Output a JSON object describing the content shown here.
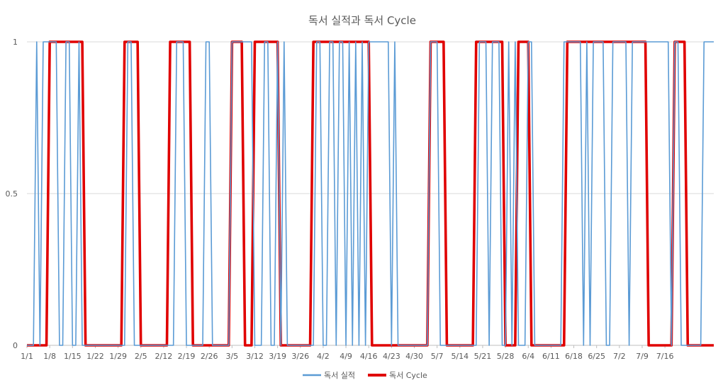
{
  "chart_data": {
    "type": "line",
    "title": "독서 실적과 독서  Cycle",
    "xlabel": "",
    "ylabel": "",
    "ylim": [
      0,
      1
    ],
    "yticks": [
      "0",
      "0.5",
      "1"
    ],
    "grid": true,
    "legend_position": "bottom",
    "x_tick_labels": [
      "1/1",
      "1/8",
      "1/15",
      "1/22",
      "1/29",
      "2/5",
      "2/12",
      "2/19",
      "2/26",
      "3/5",
      "3/12",
      "3/19",
      "3/26",
      "4/2",
      "4/9",
      "4/16",
      "4/23",
      "4/30",
      "5/7",
      "5/14",
      "5/21",
      "5/28",
      "6/4",
      "6/11",
      "6/18",
      "6/25",
      "7/2",
      "7/9",
      "7/16"
    ],
    "series": [
      {
        "name": "독서 실적",
        "color": "#5b9bd5",
        "active_days": [
          3,
          5,
          6,
          7,
          8,
          9,
          12,
          13,
          16,
          31,
          32,
          46,
          47,
          48,
          55,
          56,
          63,
          64,
          65,
          66,
          67,
          68,
          69,
          73,
          74,
          77,
          79,
          89,
          90,
          93,
          94,
          96,
          97,
          99,
          101,
          103,
          105,
          106,
          107,
          108,
          109,
          110,
          111,
          113,
          124,
          125,
          126,
          139,
          140,
          141,
          143,
          144,
          145,
          148,
          150,
          154,
          155,
          165,
          166,
          167,
          168,
          169,
          170,
          172,
          174,
          175,
          176,
          177,
          180,
          181,
          182,
          183,
          184,
          186,
          187,
          188,
          189,
          190,
          191,
          192,
          193,
          194,
          195,
          196,
          197,
          199,
          200,
          208,
          209,
          210,
          211
        ]
      },
      {
        "name": "독서 Cycle",
        "color": "#e00000",
        "active_ranges": [
          [
            7,
            17
          ],
          [
            30,
            34
          ],
          [
            44,
            50
          ],
          [
            63,
            66
          ],
          [
            70,
            77
          ],
          [
            88,
            105
          ],
          [
            124,
            128
          ],
          [
            138,
            146
          ],
          [
            151,
            154
          ],
          [
            166,
            190
          ],
          [
            199,
            202
          ]
        ]
      }
    ]
  }
}
